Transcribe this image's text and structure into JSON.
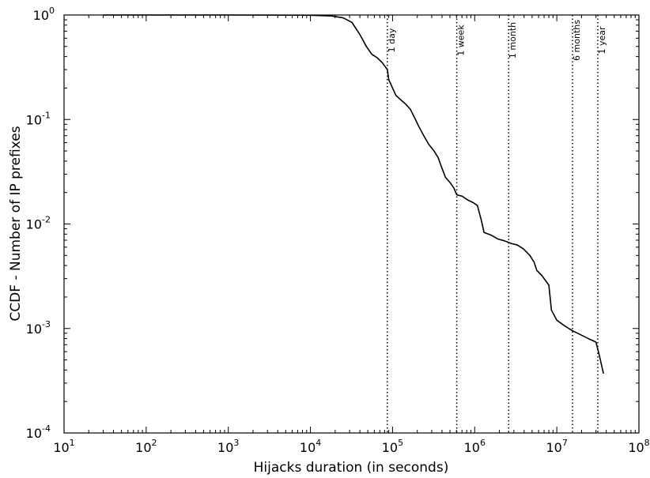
{
  "chart_data": {
    "type": "line",
    "title": "",
    "xlabel": "Hijacks duration (in seconds)",
    "ylabel": "CCDF - Number of IP prefixes",
    "xscale": "log",
    "yscale": "log",
    "xlim": [
      10,
      100000000
    ],
    "ylim": [
      0.0001,
      1
    ],
    "grid": false,
    "x_ticks": [
      {
        "base": "10",
        "exp": "1",
        "value": 10
      },
      {
        "base": "10",
        "exp": "2",
        "value": 100
      },
      {
        "base": "10",
        "exp": "3",
        "value": 1000
      },
      {
        "base": "10",
        "exp": "4",
        "value": 10000
      },
      {
        "base": "10",
        "exp": "5",
        "value": 100000
      },
      {
        "base": "10",
        "exp": "6",
        "value": 1000000
      },
      {
        "base": "10",
        "exp": "7",
        "value": 10000000
      },
      {
        "base": "10",
        "exp": "8",
        "value": 100000000
      }
    ],
    "y_ticks": [
      {
        "base": "10",
        "exp": "0",
        "value": 1
      },
      {
        "base": "10",
        "exp": "-1",
        "value": 0.1
      },
      {
        "base": "10",
        "exp": "-2",
        "value": 0.01
      },
      {
        "base": "10",
        "exp": "-3",
        "value": 0.001
      },
      {
        "base": "10",
        "exp": "-4",
        "value": 0.0001
      }
    ],
    "reference_lines": [
      {
        "label": "1 day",
        "x": 86400
      },
      {
        "label": "1 week",
        "x": 604800
      },
      {
        "label": "1 month",
        "x": 2592000
      },
      {
        "label": "6 months",
        "x": 15552000
      },
      {
        "label": "1 year",
        "x": 31536000
      }
    ],
    "series": [
      {
        "color": "#000000",
        "points": [
          [
            30,
            1.0
          ],
          [
            1000,
            1.0
          ],
          [
            10000,
            0.995
          ],
          [
            18000,
            0.98
          ],
          [
            25000,
            0.94
          ],
          [
            32000,
            0.85
          ],
          [
            40000,
            0.65
          ],
          [
            48000,
            0.5
          ],
          [
            56000,
            0.42
          ],
          [
            65000,
            0.39
          ],
          [
            75000,
            0.35
          ],
          [
            86400,
            0.3
          ],
          [
            90000,
            0.24
          ],
          [
            100000,
            0.2
          ],
          [
            110000,
            0.17
          ],
          [
            125000,
            0.155
          ],
          [
            145000,
            0.14
          ],
          [
            165000,
            0.125
          ],
          [
            190000,
            0.1
          ],
          [
            210000,
            0.085
          ],
          [
            240000,
            0.07
          ],
          [
            275000,
            0.058
          ],
          [
            320000,
            0.05
          ],
          [
            360000,
            0.043
          ],
          [
            390000,
            0.036
          ],
          [
            440000,
            0.028
          ],
          [
            500000,
            0.025
          ],
          [
            560000,
            0.022
          ],
          [
            604800,
            0.019
          ],
          [
            700000,
            0.0185
          ],
          [
            820000,
            0.017
          ],
          [
            960000,
            0.016
          ],
          [
            1080000,
            0.015
          ],
          [
            1200000,
            0.011
          ],
          [
            1300000,
            0.0083
          ],
          [
            1600000,
            0.0078
          ],
          [
            1900000,
            0.0072
          ],
          [
            2300000,
            0.0069
          ],
          [
            2800000,
            0.0065
          ],
          [
            3300000,
            0.0063
          ],
          [
            3900000,
            0.0058
          ],
          [
            4700000,
            0.005
          ],
          [
            5300000,
            0.0043
          ],
          [
            5700000,
            0.0036
          ],
          [
            6600000,
            0.0032
          ],
          [
            8000000,
            0.0026
          ],
          [
            8600000,
            0.0015
          ],
          [
            10000000,
            0.0012
          ],
          [
            12000000,
            0.00108
          ],
          [
            15552000,
            0.00095
          ],
          [
            19000000,
            0.00088
          ],
          [
            25000000,
            0.00079
          ],
          [
            30000000,
            0.00074
          ],
          [
            33000000,
            0.00055
          ],
          [
            37000000,
            0.00037
          ]
        ]
      }
    ]
  }
}
